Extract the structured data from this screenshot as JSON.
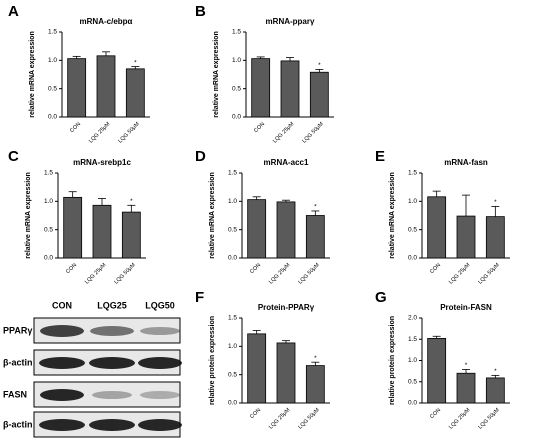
{
  "chart_data": [
    {
      "type": "bar",
      "letter": "A",
      "title": "mRNA-c/ebpα",
      "y_label": "relative mRNA expression",
      "categories": [
        "CON",
        "LQG 25μM",
        "LQG 50μM"
      ],
      "values": [
        1.03,
        1.08,
        0.85
      ],
      "errors": [
        0.04,
        0.07,
        0.04
      ],
      "significance": [
        null,
        null,
        "*"
      ],
      "color": "#5a5a5a",
      "ylim": [
        0,
        1.5
      ],
      "yticks": [
        {
          "value": 0,
          "label": "0.0"
        },
        0.5,
        {
          "value": 1,
          "label": "1.0"
        },
        1.5
      ]
    },
    {
      "type": "bar",
      "letter": "B",
      "title": "mRNA-pparγ",
      "y_label": "relative mRNA expression",
      "categories": [
        "CON",
        "LQG 25μM",
        "LQG 50μM"
      ],
      "values": [
        1.03,
        0.99,
        0.79
      ],
      "errors": [
        0.03,
        0.06,
        0.05
      ],
      "significance": [
        null,
        null,
        "*"
      ],
      "color": "#5a5a5a",
      "ylim": [
        0,
        1.5
      ],
      "yticks": [
        {
          "value": 0,
          "label": "0.0"
        },
        0.5,
        {
          "value": 1,
          "label": "1.0"
        },
        1.5
      ]
    },
    {
      "type": "bar",
      "letter": "C",
      "title": "mRNA-srebp1c",
      "y_label": "relative mRNA expression",
      "categories": [
        "CON",
        "LQG 25μM",
        "LQG 50μM"
      ],
      "values": [
        1.07,
        0.93,
        0.81
      ],
      "errors": [
        0.1,
        0.12,
        0.12
      ],
      "significance": [
        null,
        null,
        "*"
      ],
      "color": "#5a5a5a",
      "ylim": [
        0,
        1.5
      ],
      "yticks": [
        {
          "value": 0,
          "label": "0.0"
        },
        0.5,
        {
          "value": 1,
          "label": "1.0"
        },
        1.5
      ]
    },
    {
      "type": "bar",
      "letter": "D",
      "title": "mRNA-acc1",
      "y_label": "relative mRNA expression",
      "categories": [
        "CON",
        "LQG 25μM",
        "LQG 50μM"
      ],
      "values": [
        1.03,
        0.99,
        0.75
      ],
      "errors": [
        0.05,
        0.03,
        0.08
      ],
      "significance": [
        null,
        null,
        "*"
      ],
      "color": "#5a5a5a",
      "ylim": [
        0,
        1.5
      ],
      "yticks": [
        {
          "value": 0,
          "label": "0.0"
        },
        0.5,
        {
          "value": 1,
          "label": "1.0"
        },
        1.5
      ]
    },
    {
      "type": "bar",
      "letter": "E",
      "title": "mRNA-fasn",
      "y_label": "relative mRNA expression",
      "categories": [
        "CON",
        "LQG 25μM",
        "LQG 50μM"
      ],
      "values": [
        1.08,
        0.74,
        0.73
      ],
      "errors": [
        0.1,
        0.37,
        0.18
      ],
      "significance": [
        null,
        null,
        "*"
      ],
      "color": "#5a5a5a",
      "ylim": [
        0,
        1.5
      ],
      "yticks": [
        {
          "value": 0,
          "label": "0.0"
        },
        0.5,
        {
          "value": 1,
          "label": "1.0"
        },
        1.5
      ]
    },
    {
      "type": "bar",
      "letter": "F",
      "title": "Protein-PPARγ",
      "y_label": "relative protein expression",
      "categories": [
        "CON",
        "LQG 25μM",
        "LQG 50μM"
      ],
      "values": [
        1.22,
        1.06,
        0.66
      ],
      "errors": [
        0.06,
        0.04,
        0.06
      ],
      "significance": [
        null,
        null,
        "*"
      ],
      "color": "#5a5a5a",
      "ylim": [
        0,
        1.5
      ],
      "yticks": [
        {
          "value": 0,
          "label": "0.0"
        },
        0.5,
        {
          "value": 1,
          "label": "1.0"
        },
        1.5
      ]
    },
    {
      "type": "bar",
      "letter": "G",
      "title": "Protein-FASN",
      "y_label": "relative protein expression",
      "categories": [
        "CON",
        "LQG 25μM",
        "LQG 50μM"
      ],
      "values": [
        1.52,
        0.7,
        0.59
      ],
      "errors": [
        0.05,
        0.09,
        0.06
      ],
      "significance": [
        null,
        "*",
        "*"
      ],
      "color": "#5a5a5a",
      "ylim": [
        0,
        2
      ],
      "yticks": [
        {
          "value": 0,
          "label": "0.0"
        },
        0.5,
        {
          "value": 1,
          "label": "1.0"
        },
        1.5,
        {
          "value": 2,
          "label": "2.0"
        }
      ]
    }
  ],
  "blot": {
    "columns": [
      "CON",
      "LQG25",
      "LQG50"
    ],
    "rows": [
      "PPARγ",
      "β-actin",
      "FASN",
      "β-actin"
    ]
  }
}
